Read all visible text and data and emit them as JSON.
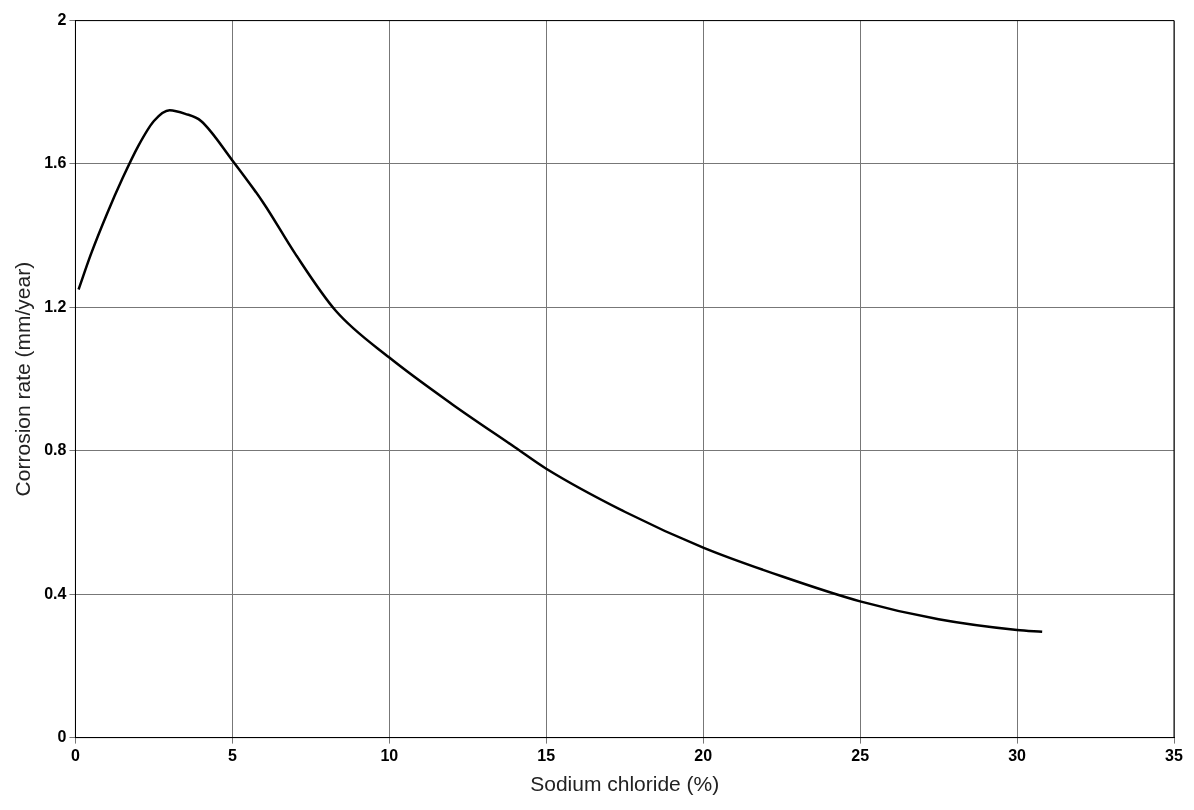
{
  "chart_data": {
    "type": "line",
    "xlabel": "Sodium chloride (%)",
    "ylabel": "Corrosion rate (mm/year)",
    "xlim": [
      0,
      35
    ],
    "xticks": [
      0,
      5,
      10,
      15,
      20,
      25,
      30,
      35
    ],
    "ylim": [
      0,
      2
    ],
    "yticks": [
      0,
      0.4,
      0.8,
      1.2,
      1.6,
      2
    ],
    "grid": true,
    "legend": false,
    "marker": "none",
    "line_style": "solid",
    "series": [
      {
        "color": "#000000",
        "x": [
          0.1,
          0.5,
          1,
          1.5,
          2,
          2.5,
          3,
          3.5,
          4,
          5,
          6,
          7,
          8.3,
          10,
          12,
          14,
          15,
          17.5,
          20,
          22.5,
          25,
          27.5,
          30,
          30.8
        ],
        "values": [
          1.25,
          1.35,
          1.46,
          1.56,
          1.65,
          1.72,
          1.75,
          1.74,
          1.72,
          1.61,
          1.49,
          1.35,
          1.19,
          1.06,
          0.93,
          0.81,
          0.75,
          0.63,
          0.53,
          0.45,
          0.38,
          0.33,
          0.3,
          0.295
        ]
      }
    ]
  }
}
